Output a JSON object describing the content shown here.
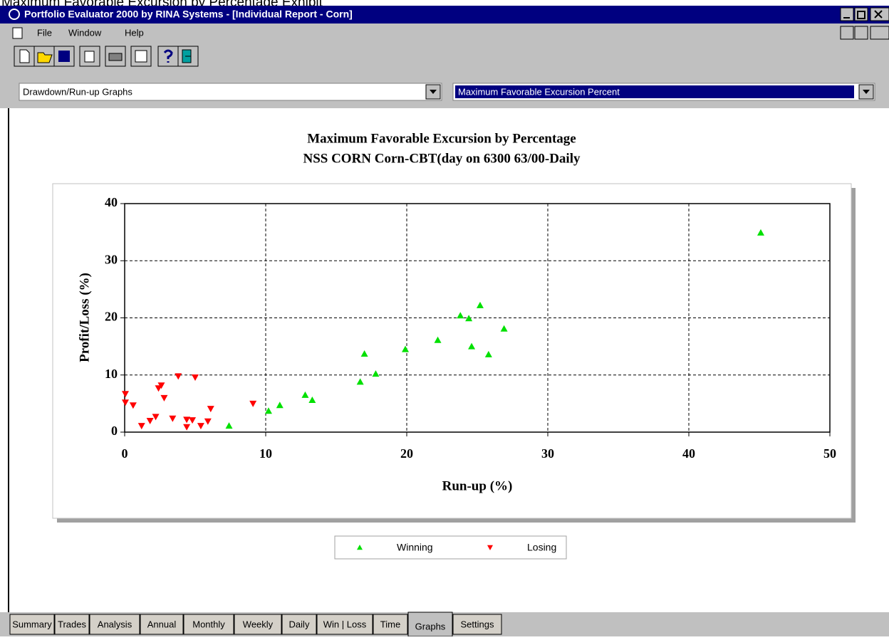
{
  "caption": "Maximum Favorable Excursion by Percentage Exhibit",
  "window": {
    "title": "Portfolio Evaluator 2000 by RINA Systems - [Individual Report - Corn]",
    "menu": [
      "File",
      "Window",
      "Help"
    ]
  },
  "selectors": {
    "report_group": "Drawdown/Run-up Graphs",
    "graph": "Maximum Favorable Excursion Percent"
  },
  "chart_data": {
    "type": "scatter",
    "title": "Maximum Favorable Excursion by Percentage",
    "subtitle": "NSS CORN  Corn-CBT(day on 6300 63/00-Daily",
    "x_label": "Run-up (%)",
    "y_label": "Profit/Loss (%)",
    "xlim": [
      0,
      50
    ],
    "ylim": [
      0,
      40
    ],
    "xticks": [
      0,
      10,
      20,
      30,
      40,
      50
    ],
    "yticks": [
      0,
      10,
      20,
      30,
      40
    ],
    "grid": true,
    "legend": "bottom",
    "series": [
      {
        "name": "Winning",
        "color": "#00e000",
        "marker": "triangle-up",
        "x": [
          7.4,
          10.2,
          11.0,
          12.8,
          13.3,
          16.7,
          17.0,
          17.8,
          19.9,
          22.2,
          23.8,
          24.4,
          24.6,
          25.2,
          25.8,
          26.9,
          45.1
        ],
        "values": [
          1.1,
          3.7,
          4.7,
          6.5,
          5.6,
          8.8,
          13.7,
          10.2,
          14.5,
          16.1,
          20.4,
          19.9,
          15.0,
          22.2,
          13.6,
          18.1,
          34.9
        ]
      },
      {
        "name": "Losing",
        "color": "#ff0000",
        "marker": "triangle-down",
        "x": [
          0.05,
          0.05,
          0.6,
          1.2,
          1.8,
          2.2,
          2.4,
          2.6,
          2.8,
          3.4,
          3.8,
          4.4,
          4.4,
          4.8,
          5.0,
          5.4,
          5.9,
          6.1,
          9.1
        ],
        "values": [
          6.7,
          5.2,
          4.7,
          1.1,
          2.0,
          2.7,
          7.7,
          8.2,
          6.0,
          2.4,
          9.8,
          2.2,
          0.9,
          2.1,
          9.6,
          1.1,
          1.9,
          4.1,
          5.0
        ]
      }
    ]
  },
  "tabs": [
    "Summary",
    "Trades",
    "Analysis",
    "Annual",
    "Monthly",
    "Weekly",
    "Daily",
    "Win | Loss",
    "Time",
    "Graphs",
    "Settings"
  ],
  "active_tab": 9
}
